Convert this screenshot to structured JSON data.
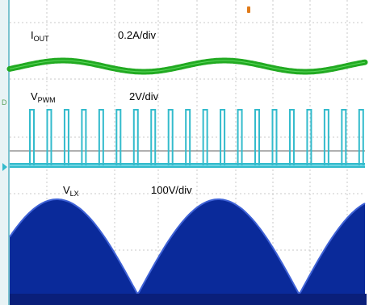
{
  "chart_data": {
    "type": "line",
    "title": "",
    "xlabel": "",
    "ylabel": "",
    "grid": true,
    "cycles_shown": 2.2,
    "channels": [
      {
        "name_main": "I",
        "name_sub": "OUT",
        "scale": "0.2A/div",
        "trace": "sinusoid",
        "color": "#22aa22"
      },
      {
        "name_main": "V",
        "name_sub": "PWM",
        "scale": "2V/div",
        "trace": "square pulse train",
        "pulses_shown": 20,
        "color": "#33bbcc"
      },
      {
        "name_main": "V",
        "name_sub": "LX",
        "scale": "100V/div",
        "trace": "rectified sine envelope",
        "color": "#0a2a9a"
      }
    ]
  },
  "colors": {
    "background": "#ffffff",
    "grid": "#c8c8c8",
    "axis_left": "#7bc3cf",
    "marker_orange": "#e07b1a"
  }
}
